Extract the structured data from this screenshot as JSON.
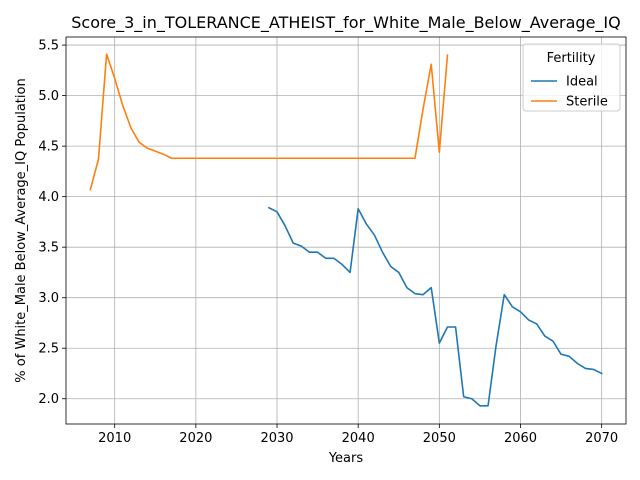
{
  "chart_data": {
    "type": "line",
    "title": "Score_3_in_TOLERANCE_ATHEIST_for_White_Male_Below_Average_IQ",
    "xlabel": "Years",
    "ylabel": "% of White_Male Below_Average_IQ Population",
    "xlim": [
      2004,
      2073
    ],
    "ylim": [
      1.75,
      5.58
    ],
    "xticks": [
      2010,
      2020,
      2030,
      2040,
      2050,
      2060,
      2070
    ],
    "yticks": [
      2.0,
      2.5,
      3.0,
      3.5,
      4.0,
      4.5,
      5.0,
      5.5
    ],
    "xtick_labels": [
      "2010",
      "2020",
      "2030",
      "2040",
      "2050",
      "2060",
      "2070"
    ],
    "ytick_labels": [
      "2.0",
      "2.5",
      "3.0",
      "3.5",
      "4.0",
      "4.5",
      "5.0",
      "5.5"
    ],
    "grid": true,
    "legend": {
      "title": "Fertility",
      "position": "top-right"
    },
    "series": [
      {
        "name": "Ideal",
        "color": "#1f77b4",
        "x": [
          2029,
          2030,
          2031,
          2032,
          2033,
          2034,
          2035,
          2036,
          2037,
          2038,
          2039,
          2040,
          2041,
          2042,
          2043,
          2044,
          2045,
          2046,
          2047,
          2048,
          2049,
          2050,
          2051,
          2052,
          2053,
          2054,
          2055,
          2056,
          2057,
          2058,
          2059,
          2060,
          2061,
          2062,
          2063,
          2064,
          2065,
          2066,
          2067,
          2068,
          2069,
          2070
        ],
        "y": [
          3.89,
          3.85,
          3.71,
          3.54,
          3.51,
          3.45,
          3.45,
          3.39,
          3.39,
          3.33,
          3.25,
          3.88,
          3.73,
          3.62,
          3.45,
          3.31,
          3.25,
          3.1,
          3.04,
          3.03,
          3.1,
          2.55,
          2.71,
          2.71,
          2.02,
          2.0,
          1.93,
          1.93,
          2.53,
          3.03,
          2.91,
          2.86,
          2.78,
          2.74,
          2.62,
          2.57,
          2.44,
          2.42,
          2.35,
          2.3,
          2.29,
          2.25
        ]
      },
      {
        "name": "Sterile",
        "color": "#ff7f0e",
        "x": [
          2007,
          2008,
          2009,
          2010,
          2011,
          2012,
          2013,
          2014,
          2015,
          2016,
          2017,
          2018,
          2019,
          2020,
          2021,
          2022,
          2023,
          2024,
          2025,
          2026,
          2027,
          2028,
          2029,
          2030,
          2031,
          2032,
          2033,
          2034,
          2035,
          2036,
          2037,
          2038,
          2039,
          2040,
          2041,
          2042,
          2043,
          2044,
          2045,
          2046,
          2047,
          2048,
          2049,
          2050,
          2051
        ],
        "y": [
          4.07,
          4.37,
          5.41,
          5.17,
          4.9,
          4.68,
          4.54,
          4.48,
          4.45,
          4.42,
          4.38,
          4.38,
          4.38,
          4.38,
          4.38,
          4.38,
          4.38,
          4.38,
          4.38,
          4.38,
          4.38,
          4.38,
          4.38,
          4.38,
          4.38,
          4.38,
          4.38,
          4.38,
          4.38,
          4.38,
          4.38,
          4.38,
          4.38,
          4.38,
          4.38,
          4.38,
          4.38,
          4.38,
          4.38,
          4.38,
          4.38,
          4.87,
          5.31,
          4.44,
          5.4
        ]
      }
    ]
  }
}
